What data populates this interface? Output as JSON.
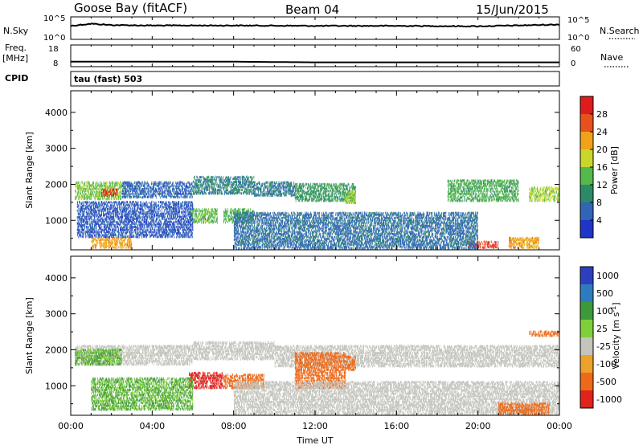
{
  "header": {
    "station": "Goose Bay (fitACF)",
    "beam": "Beam 04",
    "date": "15/Jun/2015"
  },
  "panels": {
    "nsky": {
      "label": "N.Sky",
      "ticks_left": [
        "10^5",
        "10^0"
      ],
      "ticks_right": [
        "10^5",
        "10^0"
      ],
      "right_label": "N.Search"
    },
    "freq": {
      "label_line1": "Freq.",
      "label_line2": "[MHz]",
      "ticks_left": [
        "18",
        "8"
      ],
      "ticks_right": [
        "60",
        "0"
      ],
      "right_label": "Nave"
    },
    "cpid": {
      "label": "CPID",
      "value": "tau (fast) 503"
    }
  },
  "colors": {
    "power": [
      "#1f35c8",
      "#2f66b8",
      "#2c8a68",
      "#55b84a",
      "#c8d82a",
      "#f2a218",
      "#e8501c",
      "#e01b1b"
    ],
    "velocity": [
      "#2d3fbd",
      "#2e7cc0",
      "#3d9a3a",
      "#7fcf3a",
      "#c4c4bd",
      "#eda02a",
      "#ec6a1a",
      "#e0231c"
    ]
  },
  "chart_data": [
    {
      "type": "line",
      "title": "N.Sky / N.Search",
      "x": [
        "00:00",
        "01:00",
        "02:00",
        "04:00",
        "08:00",
        "12:00",
        "16:00",
        "20:00",
        "24:00"
      ],
      "series": [
        {
          "name": "N.Sky",
          "values": [
            1000,
            3000,
            1500,
            1200,
            1200,
            1000,
            1000,
            800,
            2000
          ]
        }
      ],
      "ylim": [
        1,
        100000
      ],
      "scale": "log"
    },
    {
      "type": "line",
      "title": "Freq. [MHz] / Nave",
      "x": [
        "00:00",
        "08:00",
        "12:00",
        "16:00",
        "20:00",
        "24:00"
      ],
      "series": [
        {
          "name": "Freq. [MHz]",
          "values": [
            10.3,
            10.3,
            10.0,
            10.0,
            10.0,
            10.0
          ]
        }
      ],
      "ylim": [
        8,
        18
      ]
    },
    {
      "type": "heatmap",
      "title": "Power [dB]",
      "xlabel": "",
      "ylabel": "Slant Range [km]",
      "x_ticks": [
        "00:00",
        "04:00",
        "08:00",
        "12:00",
        "16:00",
        "20:00",
        "00:00"
      ],
      "y_ticks": [
        "1000",
        "2000",
        "3000",
        "4000"
      ],
      "xlim": [
        0,
        24
      ],
      "ylim": [
        180,
        4600
      ],
      "colorbar": {
        "label": "Power [dB]",
        "ticks": [
          "4",
          "8",
          "12",
          "16",
          "20",
          "24",
          "28"
        ],
        "range": [
          0,
          32
        ]
      },
      "bands": [
        {
          "t": [
            0.2,
            2.5
          ],
          "r": [
            1550,
            2050
          ],
          "value": 15
        },
        {
          "t": [
            1.5,
            2.3
          ],
          "r": [
            1650,
            1850
          ],
          "value": 28
        },
        {
          "t": [
            2.5,
            6.0
          ],
          "r": [
            1600,
            2050
          ],
          "value": 6
        },
        {
          "t": [
            6.0,
            9.0
          ],
          "r": [
            1700,
            2200
          ],
          "value": 9
        },
        {
          "t": [
            5.8,
            7.2
          ],
          "r": [
            900,
            1300
          ],
          "value": 14
        },
        {
          "t": [
            7.5,
            9.0
          ],
          "r": [
            900,
            1300
          ],
          "value": 13
        },
        {
          "t": [
            9.0,
            11.0
          ],
          "r": [
            1650,
            2050
          ],
          "value": 8
        },
        {
          "t": [
            11.0,
            14.0
          ],
          "r": [
            1500,
            2000
          ],
          "value": 11
        },
        {
          "t": [
            13.5,
            14.0
          ],
          "r": [
            1450,
            1800
          ],
          "value": 16
        },
        {
          "t": [
            18.5,
            22.0
          ],
          "r": [
            1500,
            2100
          ],
          "value": 13
        },
        {
          "t": [
            22.5,
            24.0
          ],
          "r": [
            1500,
            1900
          ],
          "value": 17
        },
        {
          "t": [
            1.0,
            3.0
          ],
          "r": [
            200,
            500
          ],
          "value": 22
        },
        {
          "t": [
            19.5,
            21.0
          ],
          "r": [
            200,
            400
          ],
          "value": 28
        },
        {
          "t": [
            21.5,
            23.0
          ],
          "r": [
            200,
            500
          ],
          "value": 22
        },
        {
          "t": [
            8.0,
            20.0
          ],
          "r": [
            180,
            1200
          ],
          "value": 7
        },
        {
          "t": [
            0.3,
            6.0
          ],
          "r": [
            500,
            1500
          ],
          "value": 5
        }
      ]
    },
    {
      "type": "heatmap",
      "title": "Velocity [m s^-1]",
      "xlabel": "Time UT",
      "ylabel": "Slant Range [km]",
      "x_ticks": [
        "00:00",
        "04:00",
        "08:00",
        "12:00",
        "16:00",
        "20:00",
        "00:00"
      ],
      "y_ticks": [
        "1000",
        "2000",
        "3000",
        "4000"
      ],
      "xlim": [
        0,
        24
      ],
      "ylim": [
        180,
        4600
      ],
      "colorbar": {
        "label": "Velocity [m s^-1]",
        "ticks": [
          "1000",
          "500",
          "100",
          "25",
          "-25",
          "-100",
          "-500",
          "-1000"
        ]
      },
      "bands": [
        {
          "t": [
            0.2,
            6.0
          ],
          "r": [
            1550,
            2100
          ],
          "value": 0
        },
        {
          "t": [
            6.0,
            10.0
          ],
          "r": [
            1700,
            2200
          ],
          "value": 0
        },
        {
          "t": [
            10.0,
            24.0
          ],
          "r": [
            1500,
            2100
          ],
          "value": 0
        },
        {
          "t": [
            0.2,
            2.5
          ],
          "r": [
            1550,
            2000
          ],
          "value": 150
        },
        {
          "t": [
            5.8,
            7.5
          ],
          "r": [
            900,
            1350
          ],
          "value": -600
        },
        {
          "t": [
            7.5,
            9.5
          ],
          "r": [
            900,
            1300
          ],
          "value": -300
        },
        {
          "t": [
            11.0,
            13.5
          ],
          "r": [
            900,
            1900
          ],
          "value": -300
        },
        {
          "t": [
            13.5,
            14.0
          ],
          "r": [
            1400,
            1800
          ],
          "value": -400
        },
        {
          "t": [
            1.0,
            6.0
          ],
          "r": [
            300,
            1200
          ],
          "value": 120
        },
        {
          "t": [
            8.0,
            24.0
          ],
          "r": [
            180,
            1100
          ],
          "value": 0
        },
        {
          "t": [
            21.0,
            23.5
          ],
          "r": [
            180,
            500
          ],
          "value": -150
        },
        {
          "t": [
            22.5,
            24.0
          ],
          "r": [
            2350,
            2500
          ],
          "value": -150
        }
      ]
    }
  ]
}
